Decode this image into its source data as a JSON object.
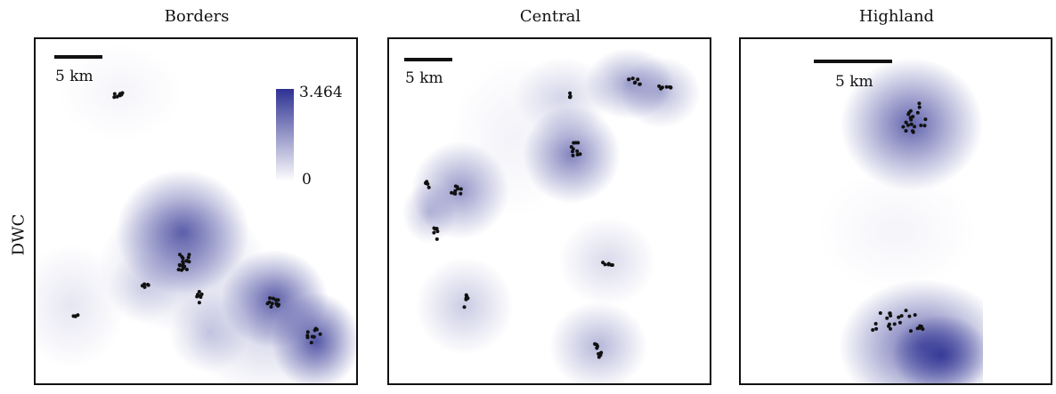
{
  "row_label": "DWC",
  "panels": [
    {
      "title": "Borders",
      "scale_label": "5 km",
      "colorbar": {
        "max_label": "3.464",
        "min_label": "0"
      },
      "density_color": "#2e3192",
      "blobs": [
        {
          "cx": 95,
          "cy": 60,
          "rx": 70,
          "ry": 55,
          "a": 0.05
        },
        {
          "cx": 165,
          "cy": 217,
          "rx": 75,
          "ry": 70,
          "a": 0.75
        },
        {
          "cx": 165,
          "cy": 255,
          "rx": 95,
          "ry": 75,
          "a": 0.25
        },
        {
          "cx": 40,
          "cy": 300,
          "rx": 60,
          "ry": 70,
          "a": 0.12
        },
        {
          "cx": 268,
          "cy": 292,
          "rx": 60,
          "ry": 55,
          "a": 0.75
        },
        {
          "cx": 315,
          "cy": 340,
          "rx": 50,
          "ry": 55,
          "a": 0.8
        },
        {
          "cx": 195,
          "cy": 330,
          "rx": 45,
          "ry": 45,
          "a": 0.25
        },
        {
          "cx": 120,
          "cy": 280,
          "rx": 40,
          "ry": 40,
          "a": 0.15
        },
        {
          "cx": 260,
          "cy": 330,
          "rx": 90,
          "ry": 70,
          "a": 0.2
        }
      ],
      "clusters": [
        {
          "cx": 95,
          "cy": 63,
          "n": 8,
          "sx": 8,
          "sy": 3
        },
        {
          "cx": 166,
          "cy": 250,
          "n": 18,
          "sx": 7,
          "sy": 11
        },
        {
          "cx": 123,
          "cy": 278,
          "n": 5,
          "sx": 4,
          "sy": 6
        },
        {
          "cx": 186,
          "cy": 292,
          "n": 7,
          "sx": 5,
          "sy": 9
        },
        {
          "cx": 268,
          "cy": 295,
          "n": 12,
          "sx": 8,
          "sy": 6
        },
        {
          "cx": 312,
          "cy": 333,
          "n": 10,
          "sx": 8,
          "sy": 10
        },
        {
          "cx": 45,
          "cy": 313,
          "n": 4,
          "sx": 3,
          "sy": 3
        }
      ]
    },
    {
      "title": "Central",
      "scale_label": "5 km",
      "density_color": "#2e3192",
      "blobs": [
        {
          "cx": 195,
          "cy": 65,
          "rx": 55,
          "ry": 45,
          "a": 0.2
        },
        {
          "cx": 270,
          "cy": 50,
          "rx": 50,
          "ry": 40,
          "a": 0.45
        },
        {
          "cx": 305,
          "cy": 60,
          "rx": 45,
          "ry": 40,
          "a": 0.35
        },
        {
          "cx": 205,
          "cy": 130,
          "rx": 55,
          "ry": 55,
          "a": 0.6
        },
        {
          "cx": 80,
          "cy": 170,
          "rx": 55,
          "ry": 55,
          "a": 0.5
        },
        {
          "cx": 45,
          "cy": 195,
          "rx": 30,
          "ry": 35,
          "a": 0.3
        },
        {
          "cx": 245,
          "cy": 250,
          "rx": 55,
          "ry": 50,
          "a": 0.18
        },
        {
          "cx": 85,
          "cy": 300,
          "rx": 55,
          "ry": 55,
          "a": 0.25
        },
        {
          "cx": 235,
          "cy": 345,
          "rx": 55,
          "ry": 50,
          "a": 0.35
        },
        {
          "cx": 140,
          "cy": 110,
          "rx": 70,
          "ry": 90,
          "a": 0.06
        }
      ],
      "clusters": [
        {
          "cx": 204,
          "cy": 64,
          "n": 4,
          "sx": 2,
          "sy": 4
        },
        {
          "cx": 275,
          "cy": 48,
          "n": 8,
          "sx": 7,
          "sy": 5
        },
        {
          "cx": 310,
          "cy": 54,
          "n": 7,
          "sx": 8,
          "sy": 2
        },
        {
          "cx": 210,
          "cy": 123,
          "n": 10,
          "sx": 6,
          "sy": 8
        },
        {
          "cx": 43,
          "cy": 163,
          "n": 5,
          "sx": 2,
          "sy": 7
        },
        {
          "cx": 76,
          "cy": 169,
          "n": 9,
          "sx": 6,
          "sy": 5
        },
        {
          "cx": 52,
          "cy": 219,
          "n": 6,
          "sx": 3,
          "sy": 8
        },
        {
          "cx": 246,
          "cy": 253,
          "n": 6,
          "sx": 6,
          "sy": 2
        },
        {
          "cx": 86,
          "cy": 294,
          "n": 6,
          "sx": 3,
          "sy": 8
        },
        {
          "cx": 236,
          "cy": 351,
          "n": 10,
          "sx": 5,
          "sy": 9
        }
      ]
    },
    {
      "title": "Highland",
      "scale_label": "5 km",
      "density_color": "#2e3192",
      "strip": {
        "x0": 82,
        "x1": 272
      },
      "blobs": [
        {
          "cx": 192,
          "cy": 96,
          "rx": 80,
          "ry": 75,
          "a": 0.75
        },
        {
          "cx": 205,
          "cy": 345,
          "rx": 95,
          "ry": 75,
          "a": 0.75
        },
        {
          "cx": 225,
          "cy": 355,
          "rx": 55,
          "ry": 45,
          "a": 0.9
        },
        {
          "cx": 175,
          "cy": 215,
          "rx": 90,
          "ry": 70,
          "a": 0.05
        }
      ],
      "clusters": [
        {
          "cx": 195,
          "cy": 89,
          "n": 20,
          "sx": 13,
          "sy": 17
        },
        {
          "cx": 175,
          "cy": 317,
          "n": 24,
          "sx": 30,
          "sy": 12
        }
      ]
    }
  ]
}
